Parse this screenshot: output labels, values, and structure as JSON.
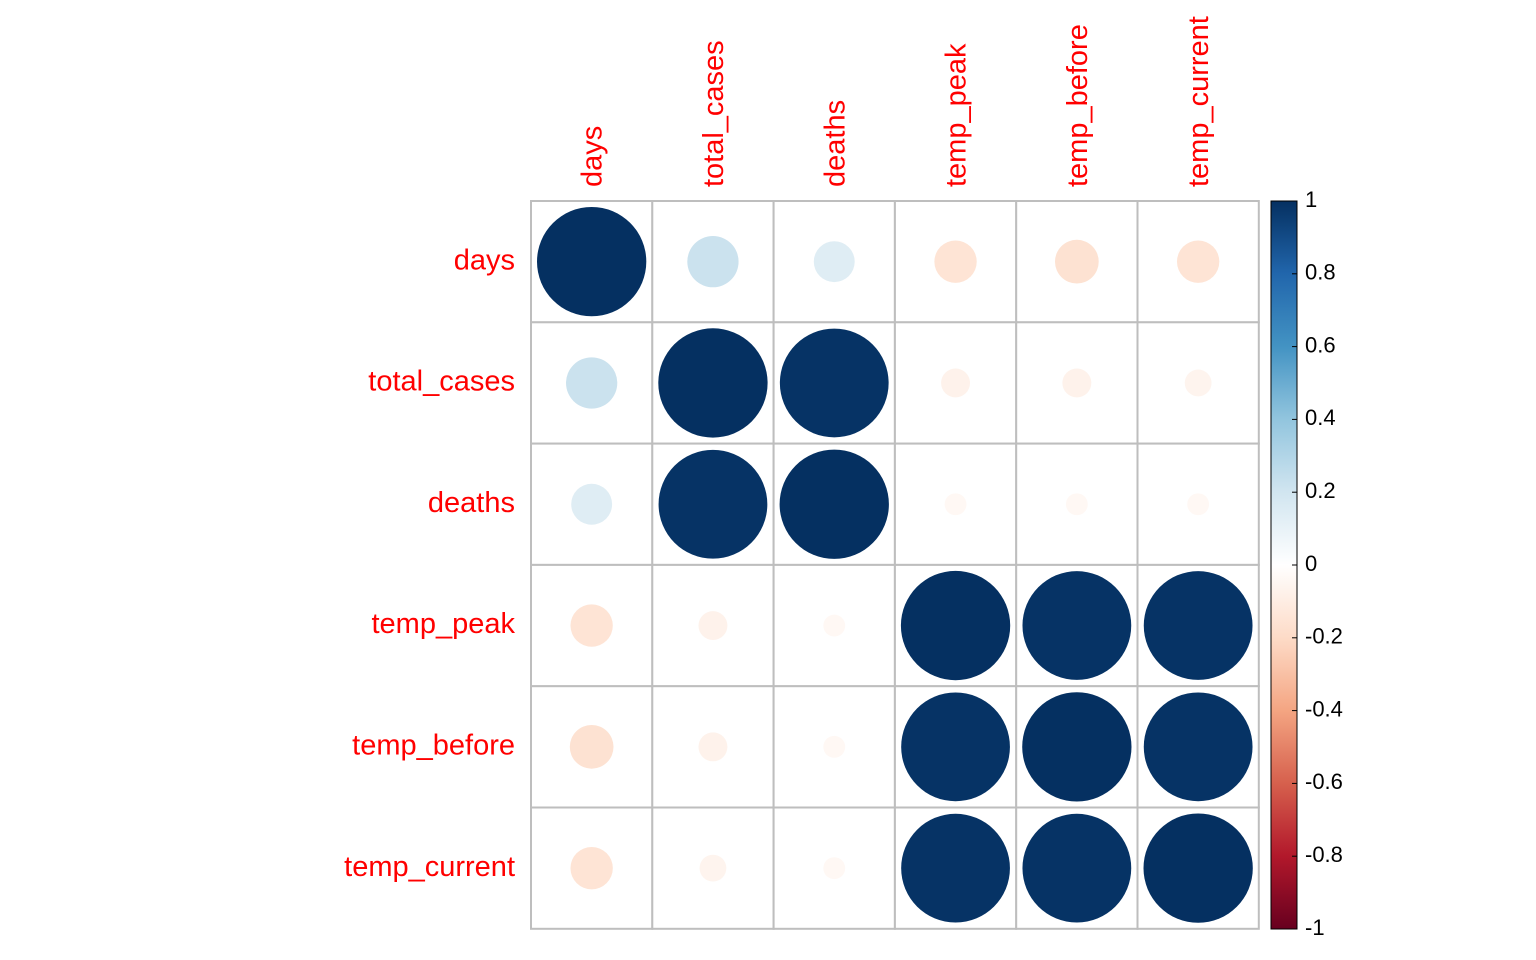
{
  "chart_data": {
    "type": "heatmap",
    "style": "correlation-circles",
    "variables": [
      "days",
      "total_cases",
      "deaths",
      "temp_peak",
      "temp_before",
      "temp_current"
    ],
    "matrix": [
      [
        1.0,
        0.22,
        0.14,
        -0.15,
        -0.16,
        -0.15
      ],
      [
        0.22,
        1.0,
        0.99,
        -0.07,
        -0.07,
        -0.06
      ],
      [
        0.14,
        0.99,
        1.0,
        -0.04,
        -0.04,
        -0.04
      ],
      [
        -0.15,
        -0.07,
        -0.04,
        1.0,
        0.99,
        0.99
      ],
      [
        -0.16,
        -0.07,
        -0.04,
        0.99,
        1.0,
        0.99
      ],
      [
        -0.15,
        -0.06,
        -0.04,
        0.99,
        0.99,
        1.0
      ]
    ],
    "colorbar": {
      "range": [
        -1,
        1
      ],
      "ticks": [
        "1",
        "0.8",
        "0.6",
        "0.4",
        "0.2",
        "0",
        "-0.2",
        "-0.4",
        "-0.6",
        "-0.8",
        "-1"
      ],
      "palette": [
        "#67001F",
        "#B2182B",
        "#D6604D",
        "#F4A582",
        "#FDDBC7",
        "#FFFFFF",
        "#D1E5F0",
        "#92C5DE",
        "#4393C3",
        "#2166AC",
        "#053061"
      ]
    },
    "label_color": "#FF0000",
    "grid": true,
    "legend_position": "right"
  }
}
